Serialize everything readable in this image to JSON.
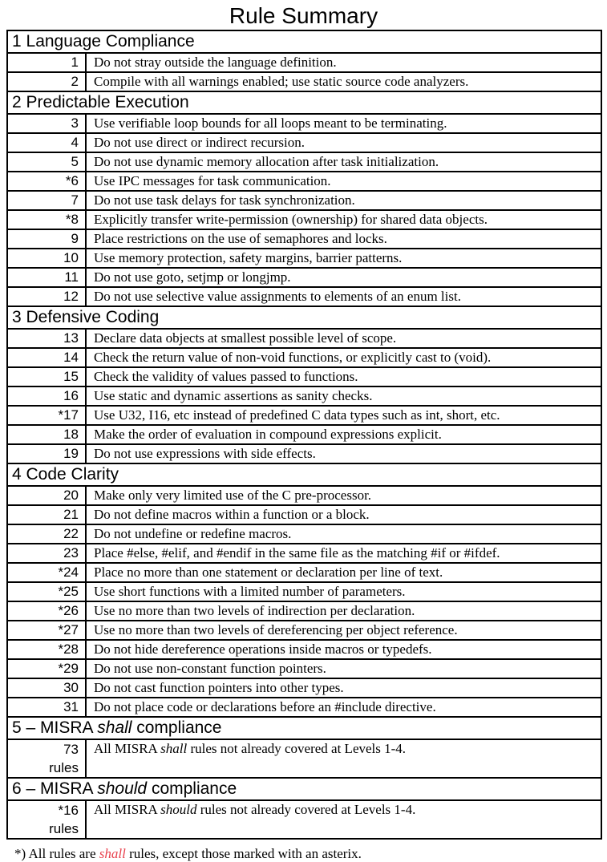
{
  "title": "Rule Summary",
  "colors": {
    "background": "#ffffff",
    "text": "#000000",
    "border": "#000000",
    "footnote_highlight": "#e8404c"
  },
  "sections": [
    {
      "header": {
        "pre": "1 Language Compliance",
        "italic": "",
        "post": ""
      },
      "rules": [
        {
          "num": "1",
          "text": "Do not stray outside the language definition."
        },
        {
          "num": "2",
          "text": "Compile with all warnings enabled; use static source code analyzers."
        }
      ]
    },
    {
      "header": {
        "pre": "2 Predictable Execution",
        "italic": "",
        "post": ""
      },
      "rules": [
        {
          "num": "3",
          "text": "Use verifiable loop bounds for all loops meant to be terminating."
        },
        {
          "num": "4",
          "text": "Do not use direct or indirect recursion."
        },
        {
          "num": "5",
          "text": "Do not use dynamic memory allocation after task initialization."
        },
        {
          "num": "*6",
          "text": "Use IPC messages for task communication."
        },
        {
          "num": "7",
          "text": "Do not use task delays for task synchronization."
        },
        {
          "num": "*8",
          "text": "Explicitly transfer write-permission (ownership) for shared data objects."
        },
        {
          "num": "9",
          "text": "Place restrictions on the use of semaphores and locks."
        },
        {
          "num": "10",
          "text": "Use memory protection, safety margins, barrier patterns."
        },
        {
          "num": "11",
          "text": "Do not use goto, setjmp or longjmp."
        },
        {
          "num": "12",
          "text": "Do not use selective value assignments to elements of an enum list."
        }
      ]
    },
    {
      "header": {
        "pre": "3 Defensive Coding",
        "italic": "",
        "post": ""
      },
      "rules": [
        {
          "num": "13",
          "text": "Declare data objects at smallest possible level of scope."
        },
        {
          "num": "14",
          "text": "Check the return value of non-void functions, or explicitly cast to (void)."
        },
        {
          "num": "15",
          "text": "Check the validity of values passed to functions."
        },
        {
          "num": "16",
          "text": "Use static and dynamic assertions as sanity checks."
        },
        {
          "num": "*17",
          "text": "Use U32, I16, etc instead of predefined C data types such as int, short, etc."
        },
        {
          "num": "18",
          "text": "Make the order of evaluation in compound expressions explicit."
        },
        {
          "num": "19",
          "text": "Do not use expressions with side effects."
        }
      ]
    },
    {
      "header": {
        "pre": "4 Code Clarity",
        "italic": "",
        "post": ""
      },
      "rules": [
        {
          "num": "20",
          "text": "Make only very limited use of the C pre-processor."
        },
        {
          "num": "21",
          "text": "Do not define macros within a function or a block."
        },
        {
          "num": "22",
          "text": "Do not undefine or redefine macros."
        },
        {
          "num": "23",
          "text": "Place #else, #elif, and #endif in the same file as the matching #if or #ifdef."
        },
        {
          "num": "*24",
          "text": "Place no more than one statement or declaration per line of text."
        },
        {
          "num": "*25",
          "text": "Use short functions with a limited number of parameters."
        },
        {
          "num": "*26",
          "text": "Use no more than two levels of indirection per declaration."
        },
        {
          "num": "*27",
          "text": "Use no more than two levels of dereferencing per object reference."
        },
        {
          "num": "*28",
          "text": "Do not hide dereference operations inside macros or typedefs."
        },
        {
          "num": "*29",
          "text": "Do not use non-constant function pointers."
        },
        {
          "num": "30",
          "text": "Do not cast function pointers into other types."
        },
        {
          "num": "31",
          "text": "Do not place code or declarations before an #include directive."
        }
      ]
    },
    {
      "header": {
        "pre": "5 – MISRA ",
        "italic": "shall",
        "post": " compliance"
      },
      "rules": [
        {
          "num": "73",
          "num_sub": "rules",
          "text_pre": "All MISRA ",
          "text_italic": "shall",
          "text_post": " rules not already covered at Levels 1-4."
        }
      ]
    },
    {
      "header": {
        "pre": "6 – MISRA ",
        "italic": "should",
        "post": " compliance"
      },
      "rules": [
        {
          "num": "*16",
          "num_sub": "rules",
          "text_pre": "All MISRA ",
          "text_italic": "should",
          "text_post": " rules not already covered at Levels 1-4."
        }
      ]
    }
  ],
  "footnote": {
    "pre": "*) All rules are ",
    "highlight": "shall",
    "post": " rules, except those marked with an asterix."
  }
}
